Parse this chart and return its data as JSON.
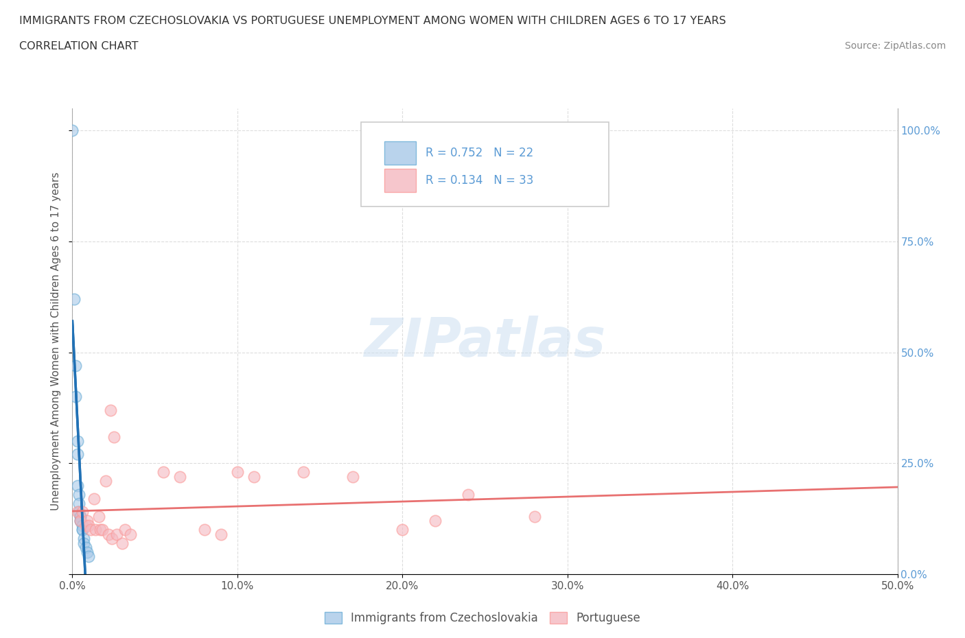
{
  "title_line1": "IMMIGRANTS FROM CZECHOSLOVAKIA VS PORTUGUESE UNEMPLOYMENT AMONG WOMEN WITH CHILDREN AGES 6 TO 17 YEARS",
  "title_line2": "CORRELATION CHART",
  "source": "Source: ZipAtlas.com",
  "ylabel": "Unemployment Among Women with Children Ages 6 to 17 years",
  "xlim": [
    0.0,
    0.5
  ],
  "ylim": [
    0.0,
    1.05
  ],
  "xticks": [
    0.0,
    0.1,
    0.2,
    0.3,
    0.4,
    0.5
  ],
  "xticklabels": [
    "0.0%",
    "10.0%",
    "20.0%",
    "30.0%",
    "40.0%",
    "50.0%"
  ],
  "yticks_right": [
    0.0,
    0.25,
    0.5,
    0.75,
    1.0
  ],
  "yticklabels_right": [
    "0.0%",
    "25.0%",
    "50.0%",
    "75.0%",
    "100.0%"
  ],
  "legend_labels": [
    "Immigrants from Czechoslovakia",
    "Portuguese"
  ],
  "R_blue": 0.752,
  "N_blue": 22,
  "R_pink": 0.134,
  "N_pink": 33,
  "blue_color": "#a8c8e8",
  "pink_color": "#f4b8c0",
  "blue_edge_color": "#6baed6",
  "pink_edge_color": "#fb9a99",
  "blue_line_color": "#2171b5",
  "pink_line_color": "#e87070",
  "blue_scatter": [
    [
      0.0,
      1.0
    ],
    [
      0.001,
      0.62
    ],
    [
      0.002,
      0.47
    ],
    [
      0.002,
      0.4
    ],
    [
      0.003,
      0.3
    ],
    [
      0.003,
      0.27
    ],
    [
      0.003,
      0.2
    ],
    [
      0.004,
      0.18
    ],
    [
      0.004,
      0.16
    ],
    [
      0.004,
      0.14
    ],
    [
      0.005,
      0.13
    ],
    [
      0.005,
      0.13
    ],
    [
      0.005,
      0.12
    ],
    [
      0.005,
      0.12
    ],
    [
      0.006,
      0.11
    ],
    [
      0.006,
      0.1
    ],
    [
      0.006,
      0.1
    ],
    [
      0.007,
      0.08
    ],
    [
      0.007,
      0.07
    ],
    [
      0.008,
      0.06
    ],
    [
      0.009,
      0.05
    ],
    [
      0.01,
      0.04
    ]
  ],
  "pink_scatter": [
    [
      0.003,
      0.14
    ],
    [
      0.005,
      0.12
    ],
    [
      0.006,
      0.14
    ],
    [
      0.008,
      0.11
    ],
    [
      0.009,
      0.12
    ],
    [
      0.01,
      0.11
    ],
    [
      0.011,
      0.1
    ],
    [
      0.013,
      0.17
    ],
    [
      0.014,
      0.1
    ],
    [
      0.016,
      0.13
    ],
    [
      0.017,
      0.1
    ],
    [
      0.018,
      0.1
    ],
    [
      0.02,
      0.21
    ],
    [
      0.022,
      0.09
    ],
    [
      0.023,
      0.37
    ],
    [
      0.024,
      0.08
    ],
    [
      0.025,
      0.31
    ],
    [
      0.027,
      0.09
    ],
    [
      0.03,
      0.07
    ],
    [
      0.032,
      0.1
    ],
    [
      0.035,
      0.09
    ],
    [
      0.055,
      0.23
    ],
    [
      0.065,
      0.22
    ],
    [
      0.08,
      0.1
    ],
    [
      0.09,
      0.09
    ],
    [
      0.1,
      0.23
    ],
    [
      0.11,
      0.22
    ],
    [
      0.14,
      0.23
    ],
    [
      0.17,
      0.22
    ],
    [
      0.2,
      0.1
    ],
    [
      0.22,
      0.12
    ],
    [
      0.24,
      0.18
    ],
    [
      0.28,
      0.13
    ]
  ],
  "watermark": "ZIPatlas",
  "background_color": "#ffffff",
  "grid_color": "#dddddd"
}
